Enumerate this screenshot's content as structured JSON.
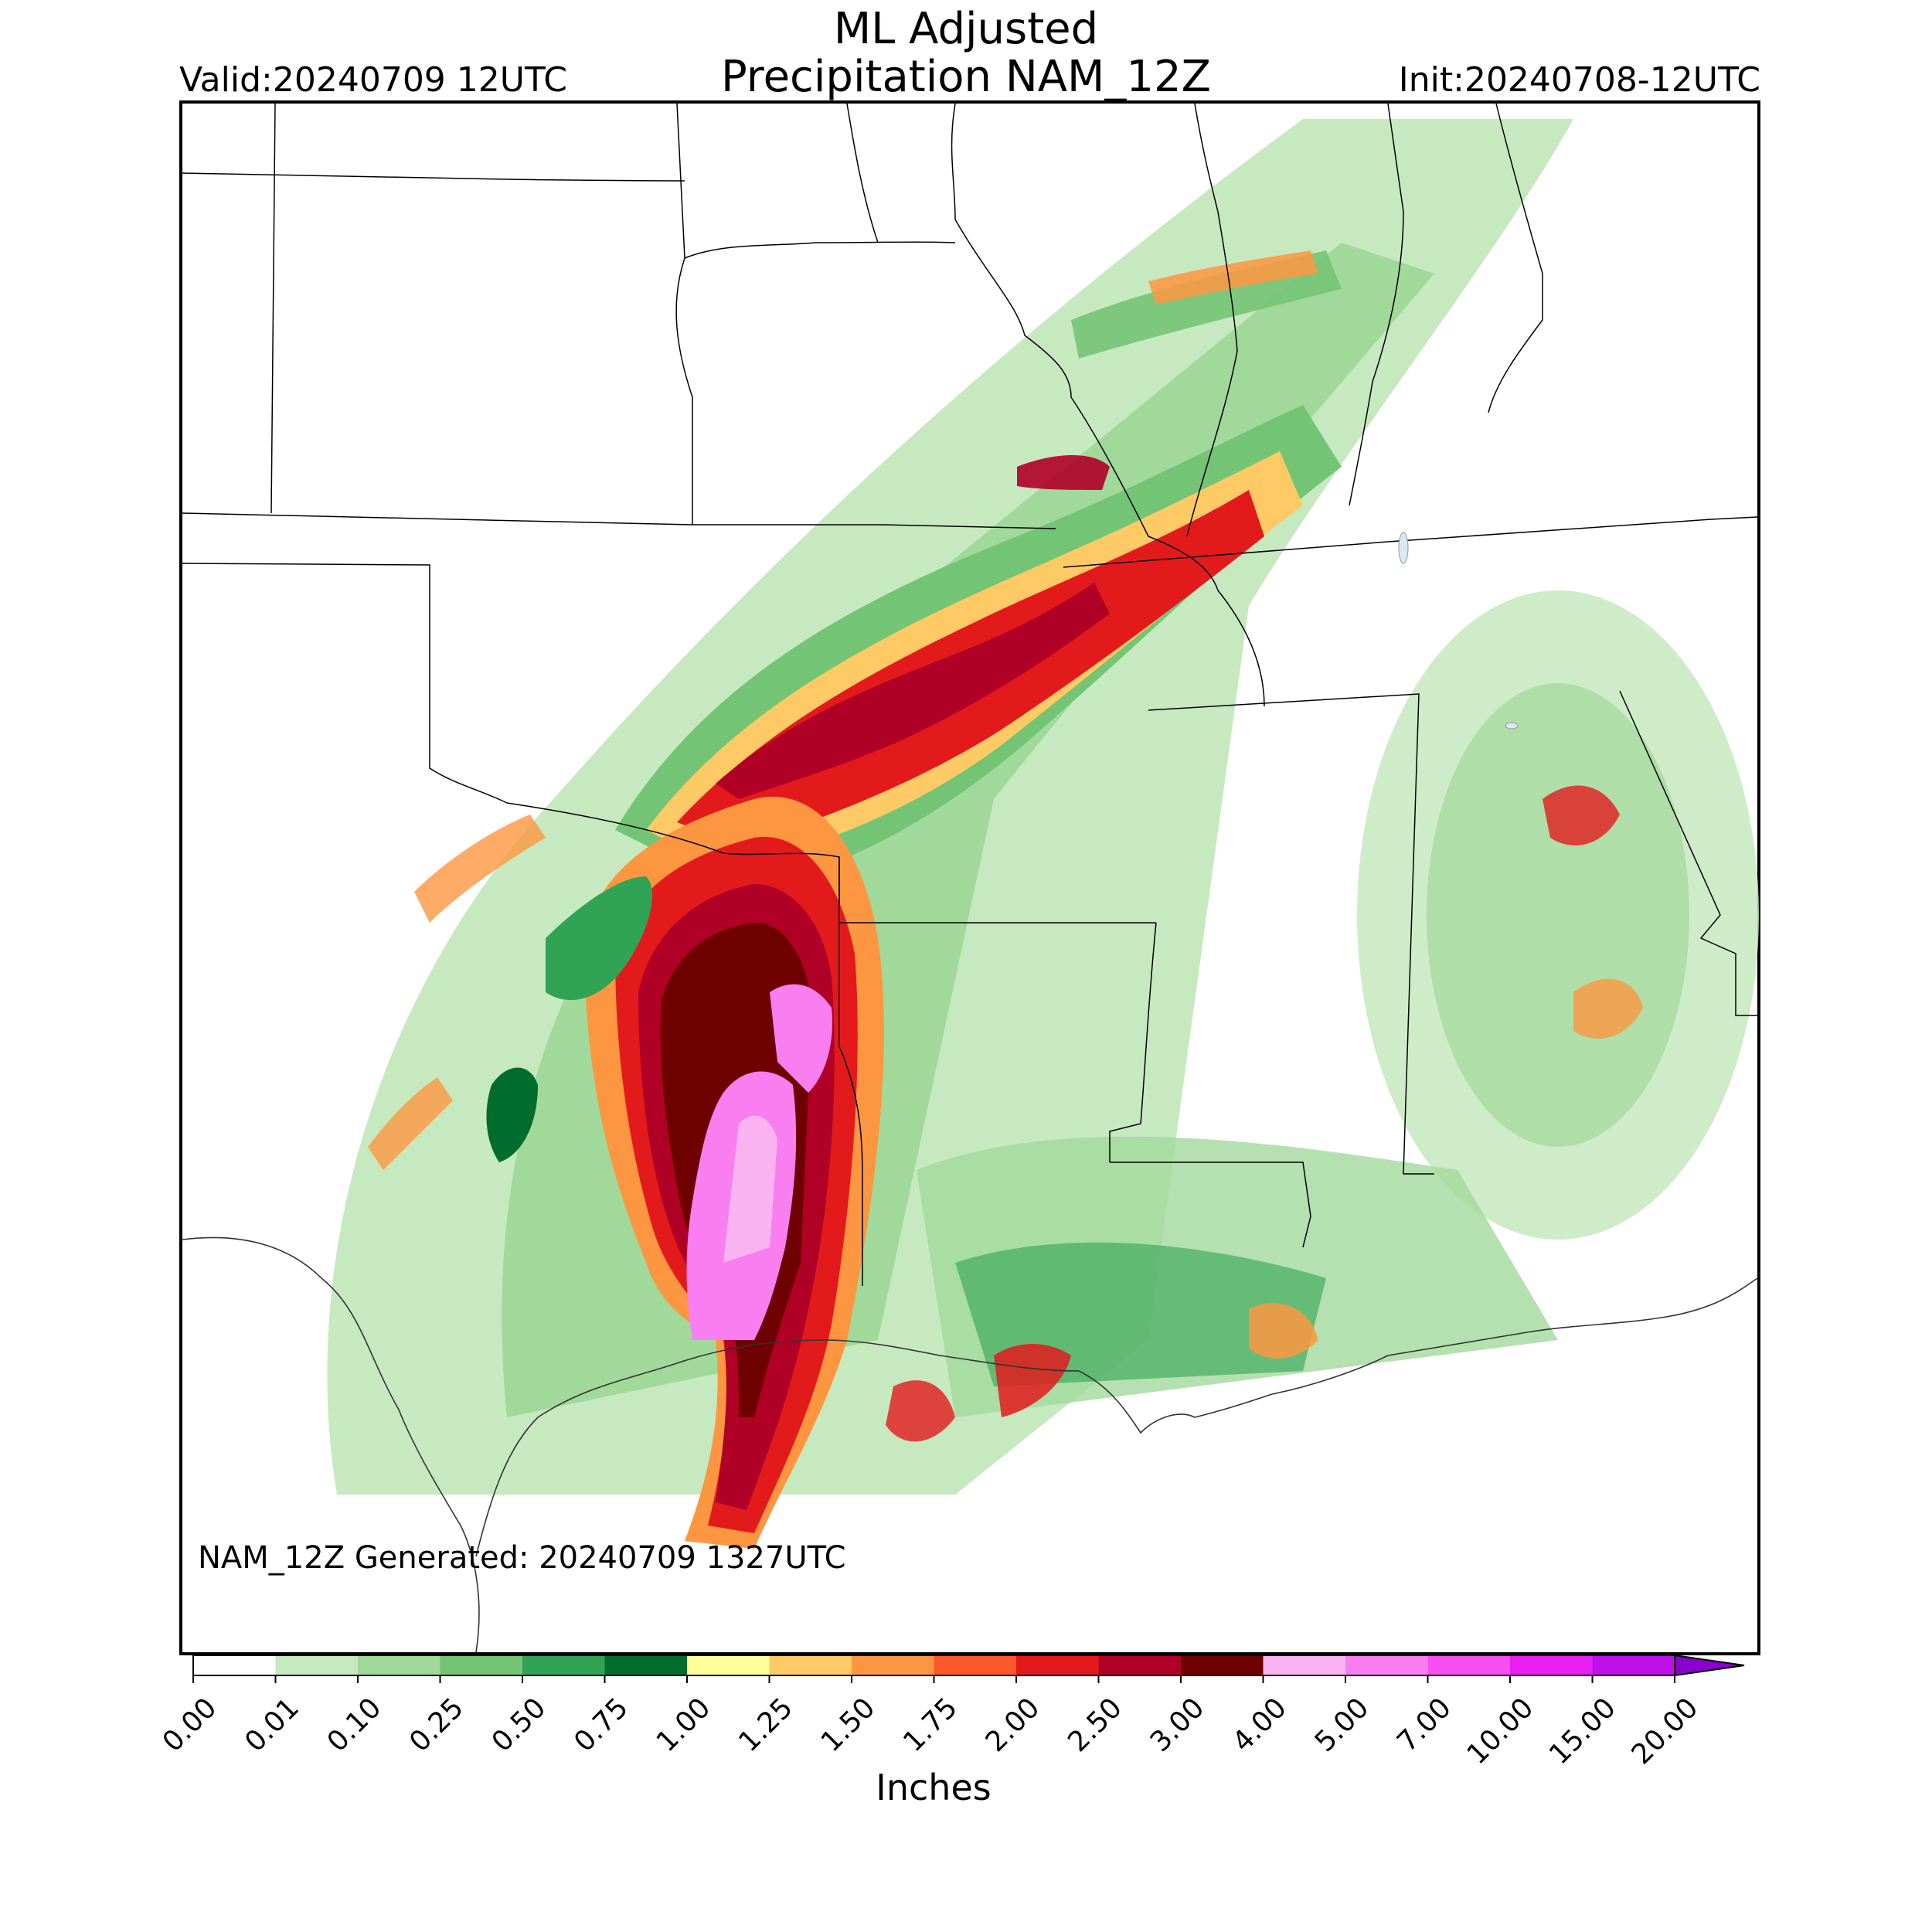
{
  "header": {
    "title_line1": "ML Adjusted",
    "title_line2": "Precipitation NAM_12Z",
    "valid": "Valid:20240709 12UTC",
    "init": "Init:20240708-12UTC"
  },
  "map": {
    "generated_note": "NAM_12Z Generated: 20240709 1327UTC",
    "region": "South-central United States (Texas, Oklahoma, Arkansas, Louisiana, Missouri, Mississippi, Alabama)"
  },
  "colorbar": {
    "title": "Inches",
    "ticks": [
      "0.00",
      "0.01",
      "0.10",
      "0.25",
      "0.50",
      "0.75",
      "1.00",
      "1.25",
      "1.50",
      "1.75",
      "2.00",
      "2.50",
      "3.00",
      "4.00",
      "5.00",
      "7.00",
      "10.00",
      "15.00",
      "20.00"
    ],
    "colors": [
      "#ffffff",
      "#c7e9c0",
      "#a1d99b",
      "#74c476",
      "#31a354",
      "#006d2c",
      "#ffff99",
      "#feca66",
      "#fd9640",
      "#fc582a",
      "#e31a1c",
      "#b10026",
      "#6f0000",
      "#f8b3f0",
      "#f97ff0",
      "#f74ff0",
      "#e81ff0",
      "#c010e8",
      "#8a00cc"
    ],
    "extend": "max"
  }
}
